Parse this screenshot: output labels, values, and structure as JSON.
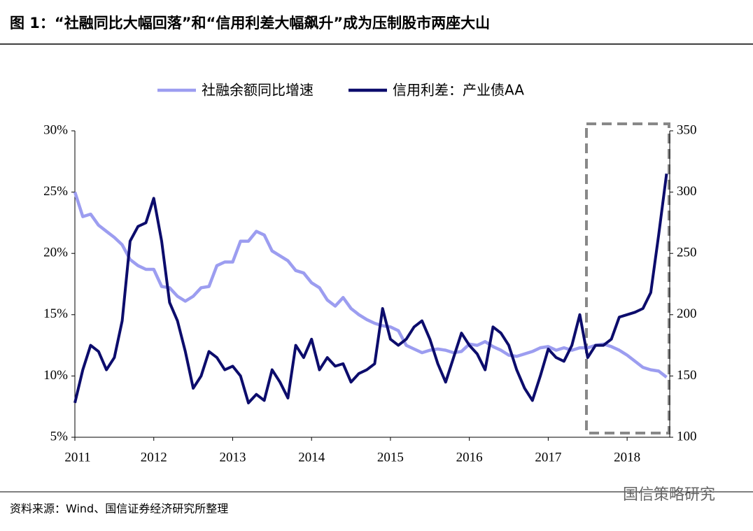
{
  "chart_data": {
    "type": "line",
    "title": "图 1：“社融同比大幅回落”和“信用利差大幅飙升”成为压制股市两座大山",
    "source": "资料来源：Wind、国信证券经济研究所整理",
    "watermark": "国信策略研究",
    "x": [
      2011.0,
      2011.1,
      2011.2,
      2011.3,
      2011.4,
      2011.5,
      2011.6,
      2011.7,
      2011.8,
      2011.9,
      2012.0,
      2012.1,
      2012.2,
      2012.3,
      2012.4,
      2012.5,
      2012.6,
      2012.7,
      2012.8,
      2012.9,
      2013.0,
      2013.1,
      2013.2,
      2013.3,
      2013.4,
      2013.5,
      2013.6,
      2013.7,
      2013.8,
      2013.9,
      2014.0,
      2014.1,
      2014.2,
      2014.3,
      2014.4,
      2014.5,
      2014.6,
      2014.7,
      2014.8,
      2014.9,
      2015.0,
      2015.1,
      2015.2,
      2015.3,
      2015.4,
      2015.5,
      2015.6,
      2015.7,
      2015.8,
      2015.9,
      2016.0,
      2016.1,
      2016.2,
      2016.3,
      2016.4,
      2016.5,
      2016.6,
      2016.7,
      2016.8,
      2016.9,
      2017.0,
      2017.1,
      2017.2,
      2017.3,
      2017.4,
      2017.5,
      2017.6,
      2017.7,
      2017.8,
      2017.9,
      2018.0,
      2018.1,
      2018.2,
      2018.3,
      2018.4,
      2018.5
    ],
    "xlim": [
      2011,
      2018.54
    ],
    "xticks": [
      2011,
      2012,
      2013,
      2014,
      2015,
      2016,
      2017,
      2018
    ],
    "ylim": [
      5,
      30
    ],
    "yticks": [
      {
        "value": 5,
        "label": "5%"
      },
      {
        "value": 10,
        "label": "10%"
      },
      {
        "value": 15,
        "label": "15%"
      },
      {
        "value": 20,
        "label": "20%"
      },
      {
        "value": 25,
        "label": "25%"
      },
      {
        "value": 30,
        "label": "30%"
      }
    ],
    "y2lim": [
      100,
      350
    ],
    "y2ticks": [
      100,
      150,
      200,
      250,
      300,
      350
    ],
    "series": [
      {
        "name": "社融余额同比增速",
        "color": "#9c9df0",
        "values": [
          25,
          23,
          23.2,
          22.3,
          21.8,
          21.3,
          20.7,
          19.5,
          19,
          18.7,
          18.7,
          17.3,
          17.2,
          16.5,
          16.1,
          16.5,
          17.2,
          17.3,
          19,
          19.3,
          19.3,
          21,
          21,
          21.8,
          21.5,
          20.2,
          19.8,
          19.4,
          18.6,
          18.4,
          17.6,
          17.2,
          16.2,
          15.7,
          16.4,
          15.5,
          15,
          14.6,
          14.3,
          14.1,
          14,
          13.7,
          12.5,
          12.2,
          11.9,
          12.1,
          12.2,
          12.1,
          11.9,
          12,
          12.6,
          12.5,
          12.8,
          12.4,
          12.1,
          11.7,
          11.6,
          11.8,
          12,
          12.3,
          12.4,
          12.1,
          12.3,
          12.1,
          12.3,
          12.3,
          12.5,
          12.6,
          12.4,
          12.1,
          11.7,
          11.2,
          10.7,
          10.5,
          10.4,
          9.9
        ]
      },
      {
        "name": "信用利差：产业债AA",
        "color": "#0c0c6c",
        "axis": "y2",
        "values": [
          128,
          155,
          175,
          170,
          155,
          165,
          195,
          260,
          272,
          275,
          295,
          260,
          210,
          195,
          170,
          140,
          150,
          170,
          165,
          155,
          158,
          150,
          128,
          135,
          130,
          155,
          145,
          132,
          175,
          165,
          180,
          155,
          165,
          158,
          160,
          145,
          152,
          155,
          160,
          205,
          180,
          175,
          180,
          190,
          195,
          180,
          160,
          145,
          165,
          185,
          175,
          168,
          155,
          190,
          185,
          175,
          155,
          140,
          130,
          150,
          172,
          165,
          162,
          175,
          200,
          165,
          175,
          175,
          180,
          198,
          200,
          202,
          205,
          218,
          265,
          315
        ]
      }
    ]
  }
}
